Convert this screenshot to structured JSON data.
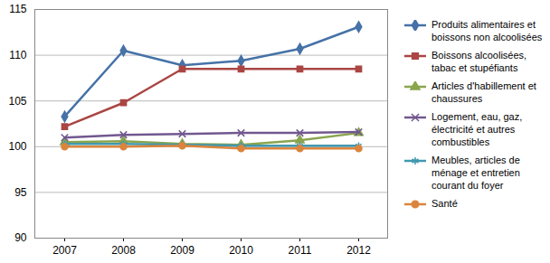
{
  "chart_data": {
    "type": "line",
    "x": [
      "2007",
      "2008",
      "2009",
      "2010",
      "2011",
      "2012"
    ],
    "ylim": [
      90,
      115
    ],
    "yticks": [
      90,
      95,
      100,
      105,
      110,
      115
    ],
    "grid": true,
    "legend": "right",
    "series": [
      {
        "name": "Produits alimentaires  et boissons non alcoolisées",
        "color": "#4572A7",
        "marker": "diamond",
        "values": [
          103.3,
          110.5,
          108.9,
          109.4,
          110.7,
          113.1
        ]
      },
      {
        "name": "Boissons alcoolisées, tabac et stupéfiants",
        "color": "#AA4643",
        "marker": "square",
        "values": [
          102.2,
          104.8,
          108.5,
          108.5,
          108.5,
          108.5
        ]
      },
      {
        "name": "Articles d'habillement et chaussures",
        "color": "#89A54E",
        "marker": "triangle",
        "values": [
          100.5,
          100.6,
          100.3,
          100.2,
          100.7,
          101.5
        ]
      },
      {
        "name": "Logement, eau, gaz, électricité et autres combustibles",
        "color": "#71588F",
        "marker": "times",
        "values": [
          101.0,
          101.3,
          101.4,
          101.5,
          101.5,
          101.6
        ]
      },
      {
        "name": "Meubles, articles de ménage et entretien courant du foyer",
        "color": "#4198AF",
        "marker": "asterisk",
        "values": [
          100.3,
          100.3,
          100.2,
          100.1,
          100.1,
          100.1
        ]
      },
      {
        "name": "Santé",
        "color": "#DB843D",
        "marker": "circle",
        "values": [
          100.0,
          100.0,
          100.1,
          99.8,
          99.8,
          99.8
        ]
      }
    ]
  }
}
